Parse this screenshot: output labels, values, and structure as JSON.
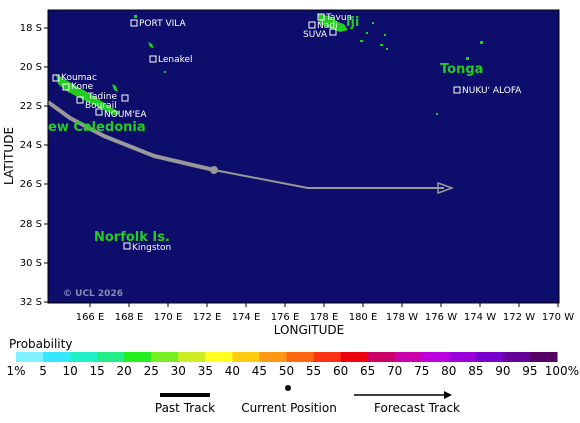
{
  "axes": {
    "y_label": "LATITUDE",
    "x_label": "LONGITUDE",
    "y_ticks": [
      "18 S",
      "20 S",
      "22 S",
      "24 S",
      "26 S",
      "28 S",
      "30 S",
      "32 S"
    ],
    "x_ticks": [
      "166 E",
      "168 E",
      "170 E",
      "172 E",
      "174 E",
      "176 E",
      "178 E",
      "180 E",
      "178 W",
      "176 W",
      "174 W",
      "172 W",
      "170 W"
    ]
  },
  "places": {
    "port_vila": "PORT VILA",
    "lenakel": "Lenakel",
    "koumac": "Koumac",
    "kone": "Kone",
    "tadine": "Tadine",
    "bourail": "Bourail",
    "noumea": "NOUM'EA",
    "kingston": "Kingston",
    "tavua": "Tavua",
    "nadi": "Nadi",
    "suva": "SUVA",
    "nuku_alofa": "NUKU' ALOFA"
  },
  "regions": {
    "new_caledonia": "ew Caledonia",
    "norfolk": "Norfolk Is.",
    "tonga": "Tonga",
    "fiji": "iji"
  },
  "credit": "© UCL 2026",
  "probability": {
    "title": "Probability",
    "ticks": [
      "1%",
      "5",
      "10",
      "15",
      "20",
      "25",
      "30",
      "35",
      "40",
      "45",
      "50",
      "55",
      "60",
      "65",
      "70",
      "75",
      "80",
      "85",
      "90",
      "95",
      "100%"
    ],
    "colors": [
      "#7ff0ff",
      "#33e8ff",
      "#22f0c8",
      "#22ee88",
      "#22ee22",
      "#77ee22",
      "#ccee22",
      "#ffff22",
      "#ffcc11",
      "#ff9911",
      "#ff6611",
      "#ff3311",
      "#ee0011",
      "#cc0066",
      "#cc00aa",
      "#bb00dd",
      "#9900dd",
      "#7700cc",
      "#660099",
      "#550066"
    ]
  },
  "legend": {
    "past": "Past Track",
    "current": "Current Position",
    "forecast": "Forecast Track"
  },
  "colors": {
    "ocean": "#0d0d6b",
    "land": "#22cc22",
    "track": "#999999"
  }
}
